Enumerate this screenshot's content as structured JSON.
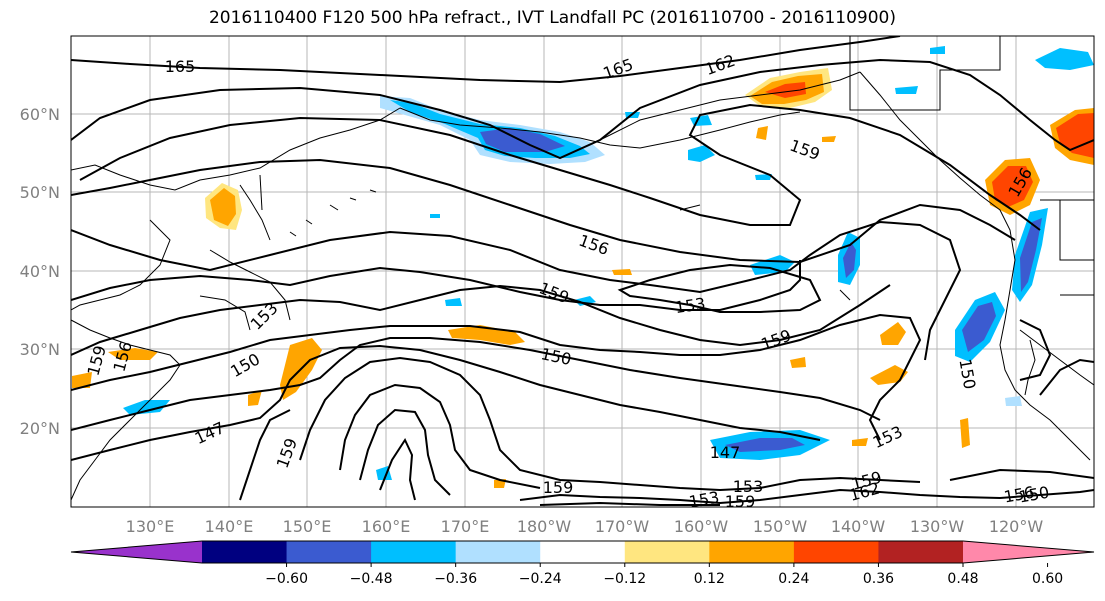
{
  "title": "2016110400 F120 500 hPa refract., IVT Landfall PC (2016110700 - 2016110900)",
  "lat_labels": [
    "60°N",
    "50°N",
    "40°N",
    "30°N",
    "20°N"
  ],
  "lon_labels": [
    "130°E",
    "140°E",
    "150°E",
    "160°E",
    "170°E",
    "180°W",
    "170°W",
    "160°W",
    "150°W",
    "140°W",
    "130°W",
    "120°W"
  ],
  "contour_labels": [
    "165",
    "165",
    "162",
    "159",
    "156",
    "156",
    "159",
    "153",
    "159",
    "153",
    "150",
    "153",
    "150",
    "159",
    "156",
    "147",
    "159",
    "147",
    "153",
    "159",
    "153",
    "162",
    "159",
    "156",
    "159",
    "150",
    "150"
  ],
  "colorbar": {
    "colors": [
      "#9932cc",
      "#000080",
      "#3b5bd0",
      "#00bfff",
      "#b0e0ff",
      "#ffffff",
      "#ffe680",
      "#ffa500",
      "#ff4500",
      "#b22222",
      "#ff88aa"
    ],
    "tick_labels": [
      "−0.60",
      "−0.48",
      "−0.36",
      "−0.24",
      "−0.12",
      "0.12",
      "0.24",
      "0.36",
      "0.48",
      "0.60"
    ]
  },
  "colors": {
    "positive_fill": "#ffa500",
    "positive_strong": "#ff4500",
    "negative_fill": "#00bfff",
    "negative_strong": "#3b5bd0",
    "contour": "#000000",
    "grid": "#999999"
  }
}
